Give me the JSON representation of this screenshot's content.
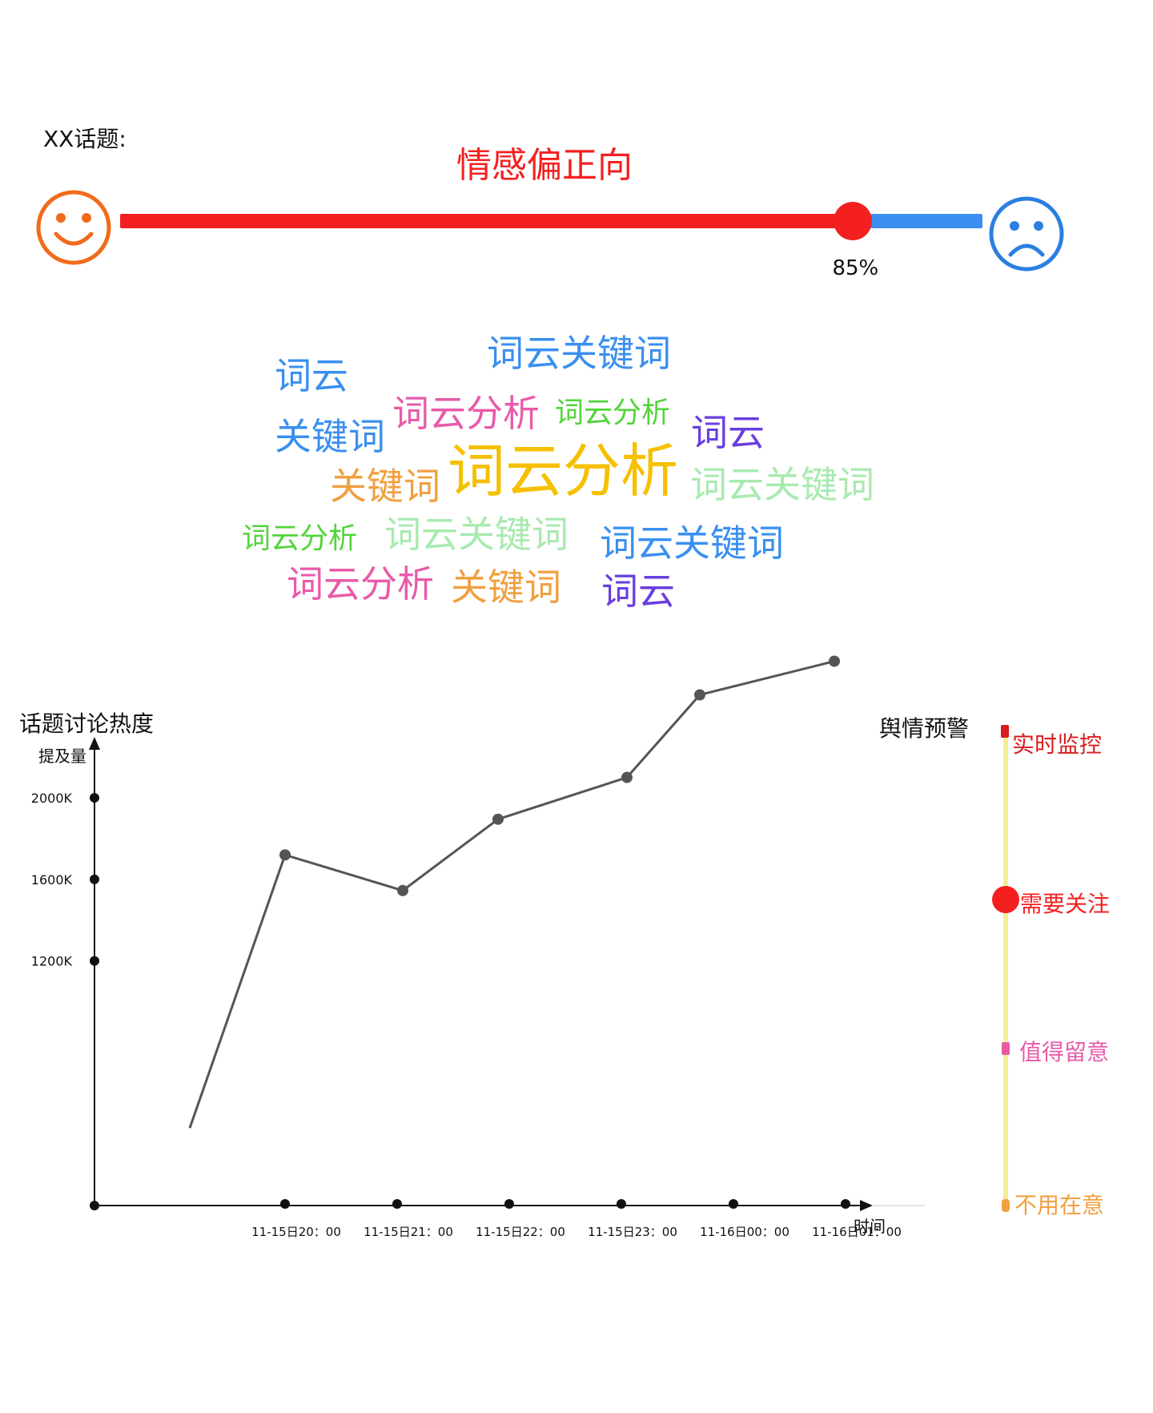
{
  "sentiment": {
    "topic_label": "XX话题:",
    "title": "情感偏正向",
    "percent": 85,
    "percent_label": "85%",
    "positive_color": "#f42020",
    "negative_color": "#3a8ff0",
    "positive_face_color": "#f26a1b",
    "negative_face_color": "#2a7fe0",
    "positive_icon": "smiley-face-icon",
    "negative_icon": "sad-face-icon"
  },
  "word_cloud": {
    "words": [
      {
        "text": "词云关键词",
        "color": "#3a8ff0",
        "size": 46
      },
      {
        "text": "词云",
        "color": "#3a8ff0",
        "size": 46
      },
      {
        "text": "词云分析",
        "color": "#e85aa8",
        "size": 46
      },
      {
        "text": "词云分析",
        "color": "#52d43a",
        "size": 36
      },
      {
        "text": "关键词",
        "color": "#3a8ff0",
        "size": 46
      },
      {
        "text": "词云",
        "color": "#6a3ee0",
        "size": 46
      },
      {
        "text": "关键词",
        "color": "#f0a040",
        "size": 46
      },
      {
        "text": "词云分析",
        "color": "#f5c000",
        "size": 72
      },
      {
        "text": "词云关键词",
        "color": "#a8eab0",
        "size": 46
      },
      {
        "text": "词云分析",
        "color": "#52d43a",
        "size": 36
      },
      {
        "text": "词云关键词",
        "color": "#a8eab0",
        "size": 46
      },
      {
        "text": "词云关键词",
        "color": "#3a8ff0",
        "size": 46
      },
      {
        "text": "词云分析",
        "color": "#e85aa8",
        "size": 46
      },
      {
        "text": "关键词",
        "color": "#f0a040",
        "size": 46
      },
      {
        "text": "词云",
        "color": "#6a3ee0",
        "size": 46
      }
    ]
  },
  "chart_title": "话题讨论热度",
  "chart_data": {
    "type": "line",
    "title": "话题讨论热度",
    "ylabel": "提及量",
    "xlabel": "时间",
    "y_ticks": [
      "1200K",
      "1600K",
      "2000K"
    ],
    "y_tick_values": [
      1200,
      1600,
      2000
    ],
    "x_ticks": [
      "11-15日20：00",
      "11-15日21：00",
      "11-15日22：00",
      "11-15日23：00",
      "11-16日00：00",
      "11-16日01：00"
    ],
    "x_tick_hours": [
      20,
      21,
      22,
      23,
      24,
      25
    ],
    "series": [
      {
        "hours": [
          19.15,
          20.0,
          21.05,
          21.9,
          23.05,
          23.7,
          24.9
        ],
        "values": [
          380,
          1720,
          1545,
          1895,
          2100,
          2505,
          2670
        ]
      }
    ],
    "xlim": [
      18.3,
      26.5
    ],
    "ylim": [
      0,
      3000
    ],
    "grid": false,
    "line_color": "#555555",
    "axis_color": "#111111"
  },
  "alert": {
    "title": "舆情预警",
    "levels": [
      {
        "label": "实时监控",
        "color": "#d81e1e",
        "marker": "bar"
      },
      {
        "label": "需要关注",
        "color": "#f42020",
        "marker": "dot"
      },
      {
        "label": "值得留意",
        "color": "#e85aa8",
        "marker": "bar"
      },
      {
        "label": "不用在意",
        "color": "#f0a040",
        "marker": "bar"
      }
    ],
    "current_level": "需要关注",
    "track_color": "#f5ee96"
  }
}
